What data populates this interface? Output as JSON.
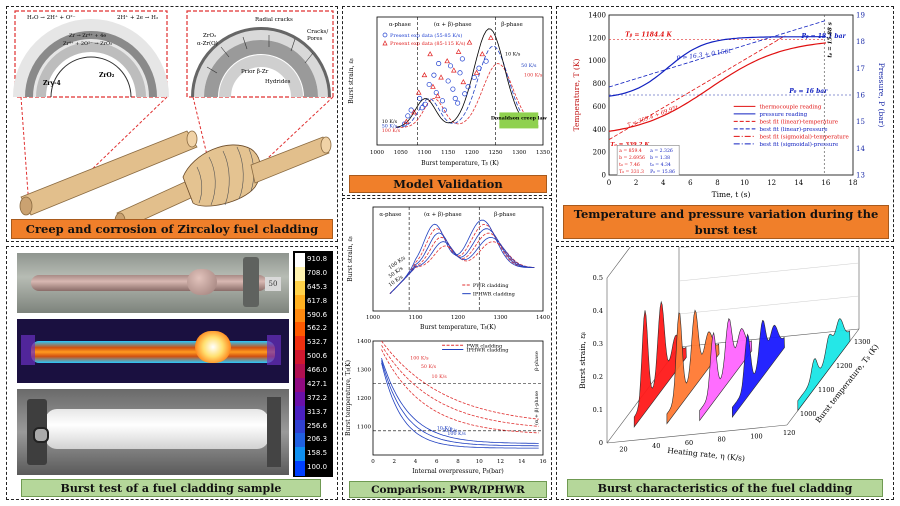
{
  "captions": {
    "creep": "Creep and corrosion of Zircaloy fuel cladding",
    "validation": "Model Validation",
    "temp_pressure": "Temperature and pressure variation during the burst test",
    "burst_test": "Burst test of a fuel cladding sample",
    "comparison": "Comparison: PWR/IPHWR",
    "characteristics": "Burst characteristics of the fuel cladding"
  },
  "creep": {
    "eq1": "H₂O → 2H⁺ + O²⁻",
    "eq2": "2H⁺ + 2e → H₂",
    "eq3": "Zr → Zr⁴⁺ + 4e",
    "eq4": "Zr⁴⁺ + 2O²⁻ → ZrO₂",
    "zry": "Zry-4",
    "zro2": "ZrO₂",
    "zro2_b": "ZrO₂",
    "azr": "α-Zr(O)",
    "radial": "Radial cracks",
    "cracks": "Cracks/",
    "pores": "Pores",
    "prior": "Prior β-Zr",
    "hydrides": "Hydrides"
  },
  "thermal": {
    "scale": [
      "910.8",
      "708.0",
      "645.3",
      "617.8",
      "590.6",
      "562.2",
      "532.7",
      "500.6",
      "466.0",
      "427.1",
      "372.2",
      "313.7",
      "256.6",
      "206.3",
      "158.5",
      "100.0"
    ],
    "colors": [
      "#ffffff",
      "#fff3b0",
      "#ffd24a",
      "#ffb020",
      "#ff8a10",
      "#ff5a00",
      "#f03010",
      "#d01830",
      "#b01050",
      "#900a80",
      "#6a10a8",
      "#4a20c0",
      "#3040d0",
      "#2060e0",
      "#1090f0",
      "#0040ff"
    ],
    "cap_label": "50"
  },
  "chart_validation": {
    "type": "scatter",
    "xlabel": "Burst temperature, Tᵦ (K)",
    "ylabel": "Burst strain, εᵦ",
    "xlim": [
      1000,
      1350
    ],
    "ylim": [
      0,
      1.1
    ],
    "xticks": [
      "1000",
      "1050",
      "1100",
      "1150",
      "1200",
      "1250",
      "1300",
      "1350"
    ],
    "phases": [
      "α-phase",
      "(α + β)-phase",
      "β-phase"
    ],
    "legend": [
      "Present exp data (55-85 K/s)",
      "Present exp data (85-115 K/s)"
    ],
    "rates": [
      "100 K/s",
      "50 K/s",
      "10 K/s",
      "10 K/s",
      "50 K/s",
      "100 K/s"
    ],
    "donaldson": "Donaldson creep law",
    "circles": [
      [
        1058,
        0.18
      ],
      [
        1065,
        0.25
      ],
      [
        1072,
        0.3
      ],
      [
        1090,
        0.4
      ],
      [
        1095,
        0.32
      ],
      [
        1102,
        0.35
      ],
      [
        1110,
        0.52
      ],
      [
        1120,
        0.6
      ],
      [
        1125,
        0.45
      ],
      [
        1130,
        0.7
      ],
      [
        1138,
        0.38
      ],
      [
        1142,
        0.3
      ],
      [
        1150,
        0.55
      ],
      [
        1155,
        0.68
      ],
      [
        1160,
        0.48
      ],
      [
        1165,
        0.4
      ],
      [
        1170,
        0.36
      ],
      [
        1175,
        0.62
      ],
      [
        1180,
        0.74
      ],
      [
        1185,
        0.44
      ],
      [
        1192,
        0.5
      ],
      [
        1205,
        0.58
      ],
      [
        1215,
        0.66
      ],
      [
        1230,
        0.72
      ]
    ],
    "triangles": [
      [
        1062,
        0.2
      ],
      [
        1078,
        0.28
      ],
      [
        1088,
        0.45
      ],
      [
        1100,
        0.6
      ],
      [
        1112,
        0.78
      ],
      [
        1118,
        0.5
      ],
      [
        1128,
        0.42
      ],
      [
        1135,
        0.58
      ],
      [
        1148,
        0.72
      ],
      [
        1162,
        0.64
      ],
      [
        1172,
        0.8
      ],
      [
        1182,
        0.54
      ],
      [
        1195,
        0.88
      ],
      [
        1210,
        0.62
      ],
      [
        1222,
        0.78
      ],
      [
        1240,
        0.92
      ]
    ]
  },
  "chart_comparison1": {
    "type": "line",
    "xlabel": "Burst temperature, Tᵦ(K)",
    "ylabel": "Burst strain, εᵦ",
    "xlim": [
      1000,
      1400
    ],
    "ylim": [
      0,
      1.2
    ],
    "xticks": [
      "1000",
      "1100",
      "1200",
      "1300",
      "1400"
    ],
    "phases": [
      "α-phase",
      "(α + β)-phase",
      "β-phase"
    ],
    "legend": [
      "PWR cladding",
      "IPHWR cladding"
    ],
    "rates": [
      "100 K/s",
      "50 K/s",
      "10 K/s"
    ]
  },
  "chart_comparison2": {
    "type": "line",
    "xlabel": "Internal overpressure, Pᵦ(bar)",
    "ylabel": "Burst temperature, Tᵦ(K)",
    "xlim": [
      0,
      16
    ],
    "ylim": [
      1000,
      1400
    ],
    "xticks": [
      "0",
      "2",
      "4",
      "6",
      "8",
      "10",
      "12",
      "14",
      "16"
    ],
    "yticks": [
      "1100",
      "1200",
      "1300",
      "1400"
    ],
    "legend": [
      "PWR cladding",
      "IPHWR cladding"
    ],
    "rates": [
      "100 K/s",
      "50 K/s",
      "10 K/s",
      "10 K/s",
      "50 K/s",
      "100 K/s"
    ],
    "phases": [
      "β-phase",
      "(α + β)-phase"
    ]
  },
  "chart_tp": {
    "type": "line",
    "xlabel": "Time, t (s)",
    "ylabel_left": "Temperature, T (K)",
    "ylabel_right": "Pressure, P (bar)",
    "xlim": [
      0,
      18
    ],
    "ylim_left": [
      0,
      1400
    ],
    "ylim_right": [
      13,
      19
    ],
    "xticks": [
      "0",
      "2",
      "4",
      "6",
      "8",
      "10",
      "12",
      "14",
      "16",
      "18"
    ],
    "yticks_left": [
      "0",
      "200",
      "400",
      "600",
      "800",
      "1000",
      "1200",
      "1400"
    ],
    "yticks_right": [
      "13",
      "14",
      "15",
      "16",
      "17",
      "18",
      "19"
    ],
    "tb": "Tᵦ = 1184.4 K",
    "pb": "Pᵦ = 18.1 bar",
    "p0": "P₀ = 16 bar",
    "t0": "T₀ = 339.2 K",
    "pfit": "P = 16.3 + 0.156t",
    "tfit": "T = 309.4 + 69.95t",
    "tb_time": "tᵦ = 15.88 s",
    "legend": [
      "thermocouple reading",
      "pressure reading",
      "best fit (linear)-temperature",
      "best fit (linear)-pressure",
      "best fit (sigmoidal)-temperature",
      "best fit (sigmoidal)-pressure"
    ],
    "params": [
      [
        "a = 859.4",
        "a = 2.326"
      ],
      [
        "b = 2.6956",
        "b = 1.38"
      ],
      [
        "t₀ = 7.46",
        "t₀ = 4.34"
      ],
      [
        "T₀ = 331.3",
        "P₀ = 15.86"
      ]
    ]
  },
  "chart_3d": {
    "type": "area",
    "xlabel": "Heating rate, η (K/s)",
    "ylabel": "Burst temperature, Tᵦ (K)",
    "zlabel": "Burst strain, εᵦ",
    "xticks": [
      "20",
      "40",
      "60",
      "80",
      "100",
      "120"
    ],
    "yticks": [
      "1000",
      "1100",
      "1200",
      "1300"
    ],
    "zticks": [
      "0",
      "0.1",
      "0.2",
      "0.3",
      "0.4",
      "0.5"
    ],
    "series": [
      {
        "name": "20 K/s",
        "color": "#ff1a1a"
      },
      {
        "name": "40 K/s",
        "color": "#ff7a33"
      },
      {
        "name": "60 K/s",
        "color": "#ff66ff"
      },
      {
        "name": "80 K/s",
        "color": "#1a1aff"
      },
      {
        "name": "120 K/s",
        "color": "#1ae6e6"
      }
    ]
  }
}
